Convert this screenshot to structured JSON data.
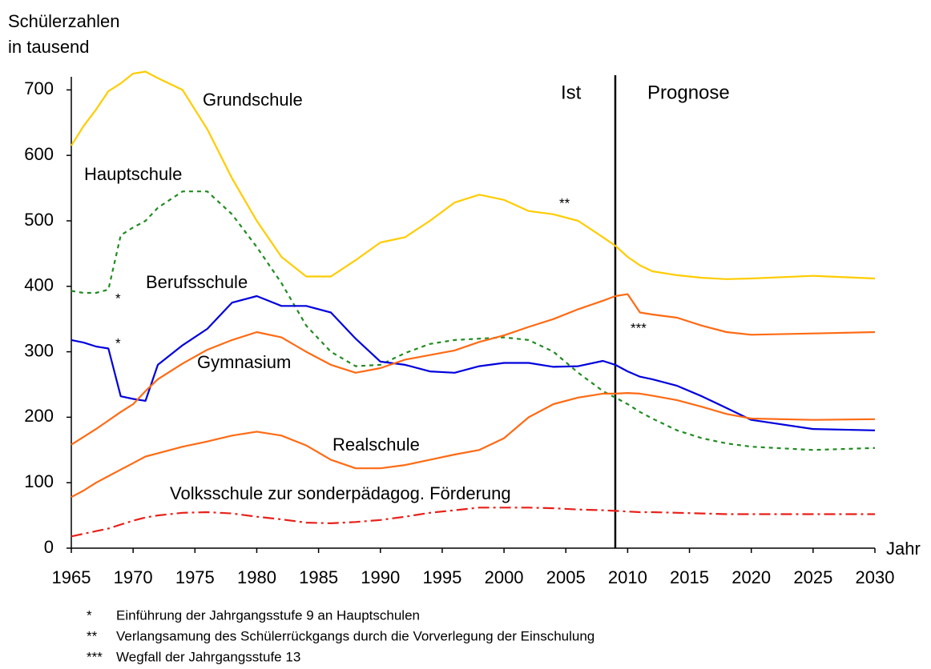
{
  "chart_data": {
    "type": "line",
    "ylabel": [
      "Schülerzahlen",
      "in tausend"
    ],
    "xlabel": "Jahr",
    "xlim": [
      1965,
      2030
    ],
    "ylim": [
      0,
      720
    ],
    "xticks": [
      1965,
      1970,
      1975,
      1980,
      1985,
      1990,
      1995,
      2000,
      2005,
      2010,
      2015,
      2020,
      2025,
      2030
    ],
    "yticks": [
      0,
      100,
      200,
      300,
      400,
      500,
      600,
      700
    ],
    "divider_x": 2009,
    "divider_labels": [
      "Ist",
      "Prognose"
    ],
    "x": [
      1965,
      1966,
      1967,
      1968,
      1969,
      1970,
      1971,
      1972,
      1974,
      1976,
      1978,
      1980,
      1982,
      1984,
      1986,
      1988,
      1990,
      1992,
      1994,
      1996,
      1998,
      2000,
      2002,
      2004,
      2006,
      2008,
      2009,
      2010,
      2011,
      2012,
      2014,
      2016,
      2018,
      2020,
      2025,
      2030
    ],
    "series": [
      {
        "name": "Grundschule",
        "color": "#ffcc00",
        "dash": "solid",
        "values": [
          615,
          645,
          670,
          698,
          710,
          725,
          728,
          718,
          700,
          640,
          565,
          500,
          445,
          415,
          415,
          440,
          467,
          475,
          500,
          528,
          540,
          532,
          515,
          510,
          500,
          475,
          462,
          445,
          432,
          423,
          417,
          413,
          411,
          412,
          416,
          412
        ]
      },
      {
        "name": "Hauptschule",
        "color": "#228b22",
        "dash": "dashed",
        "values": [
          393,
          390,
          390,
          395,
          478,
          490,
          500,
          520,
          545,
          545,
          510,
          460,
          405,
          340,
          300,
          278,
          280,
          298,
          312,
          318,
          320,
          322,
          318,
          300,
          268,
          240,
          230,
          220,
          208,
          198,
          180,
          168,
          160,
          155,
          150,
          153
        ]
      },
      {
        "name": "Berufsschule",
        "color": "#0000dd",
        "dash": "solid",
        "values": [
          318,
          314,
          308,
          305,
          232,
          228,
          225,
          280,
          310,
          335,
          375,
          385,
          370,
          370,
          360,
          320,
          285,
          280,
          270,
          268,
          278,
          283,
          283,
          277,
          278,
          286,
          280,
          270,
          262,
          258,
          248,
          232,
          214,
          196,
          182,
          180
        ]
      },
      {
        "name": "Gymnasium",
        "color": "#ff6a13",
        "dash": "solid",
        "values": [
          158,
          170,
          182,
          195,
          208,
          220,
          240,
          258,
          282,
          303,
          318,
          330,
          322,
          300,
          280,
          268,
          275,
          288,
          295,
          302,
          315,
          325,
          338,
          350,
          365,
          378,
          385,
          388,
          360,
          357,
          352,
          340,
          330,
          326,
          328,
          330
        ]
      },
      {
        "name": "Realschule",
        "color": "#ff6a13",
        "dash": "solid",
        "values": [
          78,
          88,
          100,
          110,
          120,
          130,
          140,
          145,
          155,
          163,
          172,
          178,
          172,
          157,
          135,
          122,
          122,
          127,
          135,
          143,
          150,
          168,
          200,
          220,
          230,
          236,
          236,
          237,
          236,
          233,
          226,
          216,
          205,
          198,
          196,
          197
        ]
      },
      {
        "name": "Volksschule zur sonderpädagog. Förderung",
        "color": "#e8201a",
        "dash": "dashdot",
        "values": [
          18,
          22,
          26,
          30,
          36,
          42,
          47,
          50,
          54,
          55,
          53,
          48,
          44,
          39,
          38,
          40,
          43,
          48,
          54,
          58,
          62,
          62,
          62,
          61,
          59,
          58,
          57,
          56,
          55,
          55,
          54,
          53,
          52,
          52,
          52,
          52
        ]
      }
    ],
    "annotations": [
      "*",
      "*",
      "**",
      "***"
    ],
    "footnotes": [
      {
        "marker": "*",
        "text": "Einführung der Jahrgangsstufe 9 an Hauptschulen"
      },
      {
        "marker": "**",
        "text": "Verlangsamung des Schülerrückgangs durch die Vorverlegung der Einschulung"
      },
      {
        "marker": "***",
        "text": "Wegfall der Jahrgangsstufe 13"
      }
    ]
  }
}
